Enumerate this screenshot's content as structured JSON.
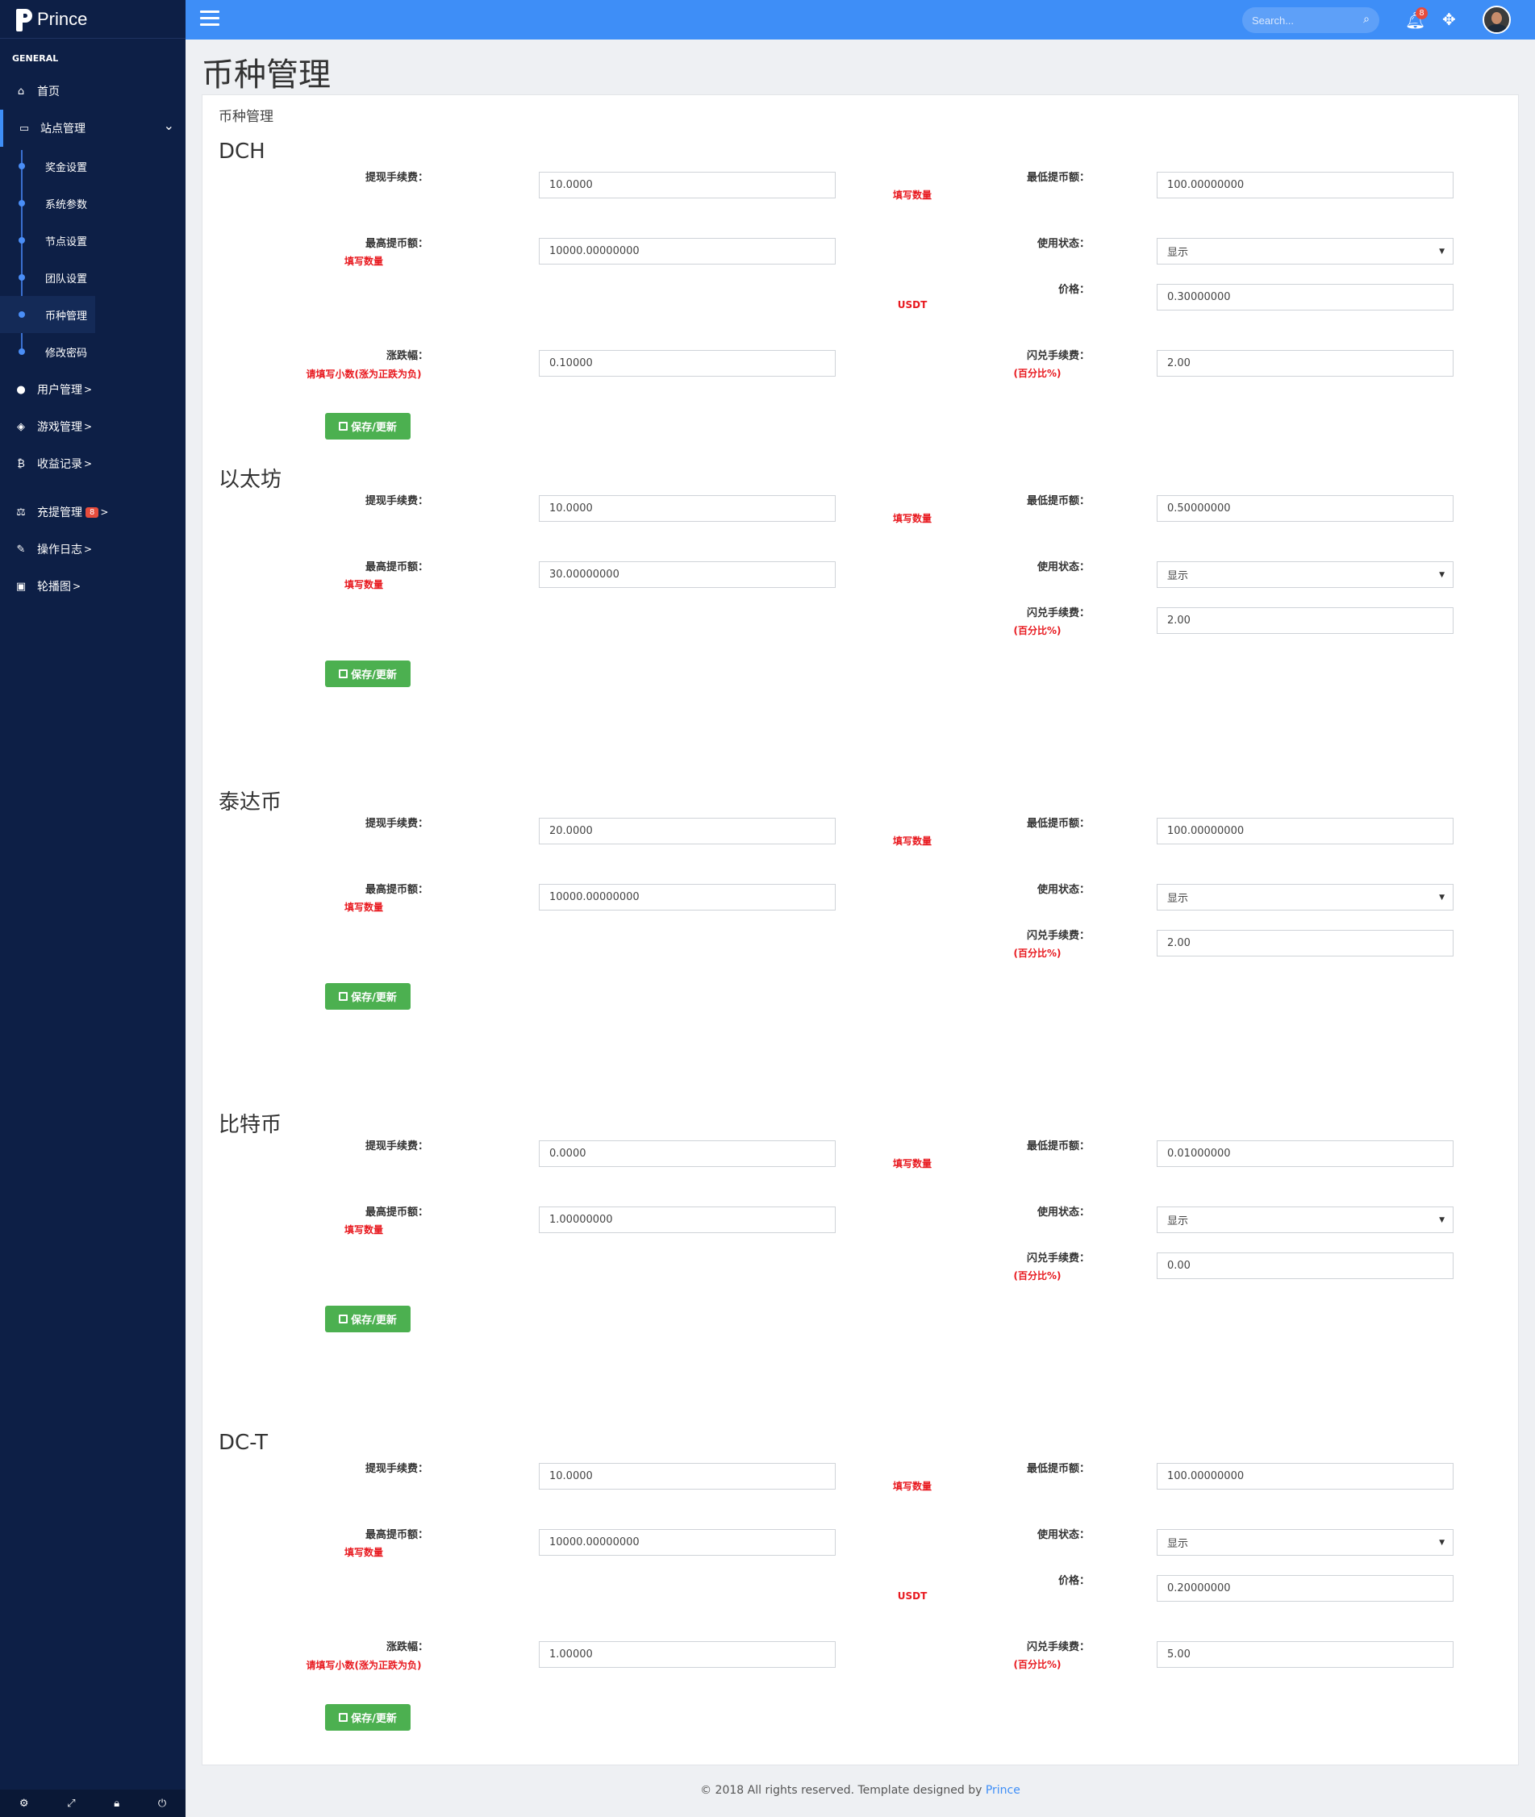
{
  "brand": "Prince",
  "sidebar": {
    "section": "GENERAL",
    "items": [
      {
        "label": "首页",
        "icon": "home-icon",
        "glyph": "⌂"
      },
      {
        "label": "站点管理",
        "icon": "desktop-icon",
        "glyph": "▭"
      },
      {
        "label": "用户管理",
        "icon": "user-circle-icon",
        "glyph": "●"
      },
      {
        "label": "游戏管理",
        "icon": "cube-icon",
        "glyph": "◈"
      },
      {
        "label": "收益记录",
        "icon": "bitcoin-icon",
        "glyph": "₿"
      },
      {
        "label": "充提管理",
        "icon": "balance-scale-icon",
        "glyph": "⚖",
        "badge": "8"
      },
      {
        "label": "操作日志",
        "icon": "edit-icon",
        "glyph": "✎"
      },
      {
        "label": "轮播图",
        "icon": "image-icon",
        "glyph": "▣"
      }
    ],
    "subitems": [
      "奖金设置",
      "系统参数",
      "节点设置",
      "团队设置",
      "币种管理",
      "修改密码"
    ],
    "arrow": ">",
    "footer_icons": [
      "gear-icon",
      "fullscreen-icon",
      "lock-icon",
      "power-icon"
    ]
  },
  "topbar": {
    "search_placeholder": "Search...",
    "notifications": "8"
  },
  "page": {
    "title": "币种管理",
    "card_title": "币种管理"
  },
  "labels": {
    "fee": "提现手续费：",
    "max": "最高提币额：",
    "min": "最低提币额：",
    "status": "使用状态：",
    "price": "价格：",
    "change": "涨跌幅：",
    "flash": "闪兑手续费：",
    "pct": "(百分比%)",
    "fill": "填写数量",
    "usdt": "USDT",
    "decimal_hint": "请填写小数(涨为正跌为负)",
    "save": "保存/更新"
  },
  "coins": [
    {
      "name": "DCH",
      "fee": "10.0000",
      "min": "100.00000000",
      "max": "10000.00000000",
      "status": "显示",
      "price": "0.30000000",
      "change": "0.10000",
      "flash": "2.00"
    },
    {
      "name": "以太坊",
      "fee": "10.0000",
      "min": "0.50000000",
      "max": "30.00000000",
      "status": "显示",
      "flash": "2.00"
    },
    {
      "name": "泰达币",
      "fee": "20.0000",
      "min": "100.00000000",
      "max": "10000.00000000",
      "status": "显示",
      "flash": "2.00"
    },
    {
      "name": "比特币",
      "fee": "0.0000",
      "min": "0.01000000",
      "max": "1.00000000",
      "status": "显示",
      "flash": "0.00"
    },
    {
      "name": "DC-T",
      "fee": "10.0000",
      "min": "100.00000000",
      "max": "10000.00000000",
      "status": "显示",
      "price": "0.20000000",
      "change": "1.00000",
      "flash": "5.00"
    }
  ],
  "footer": {
    "text": "© 2018 All rights reserved. Template designed by ",
    "link": "Prince"
  }
}
